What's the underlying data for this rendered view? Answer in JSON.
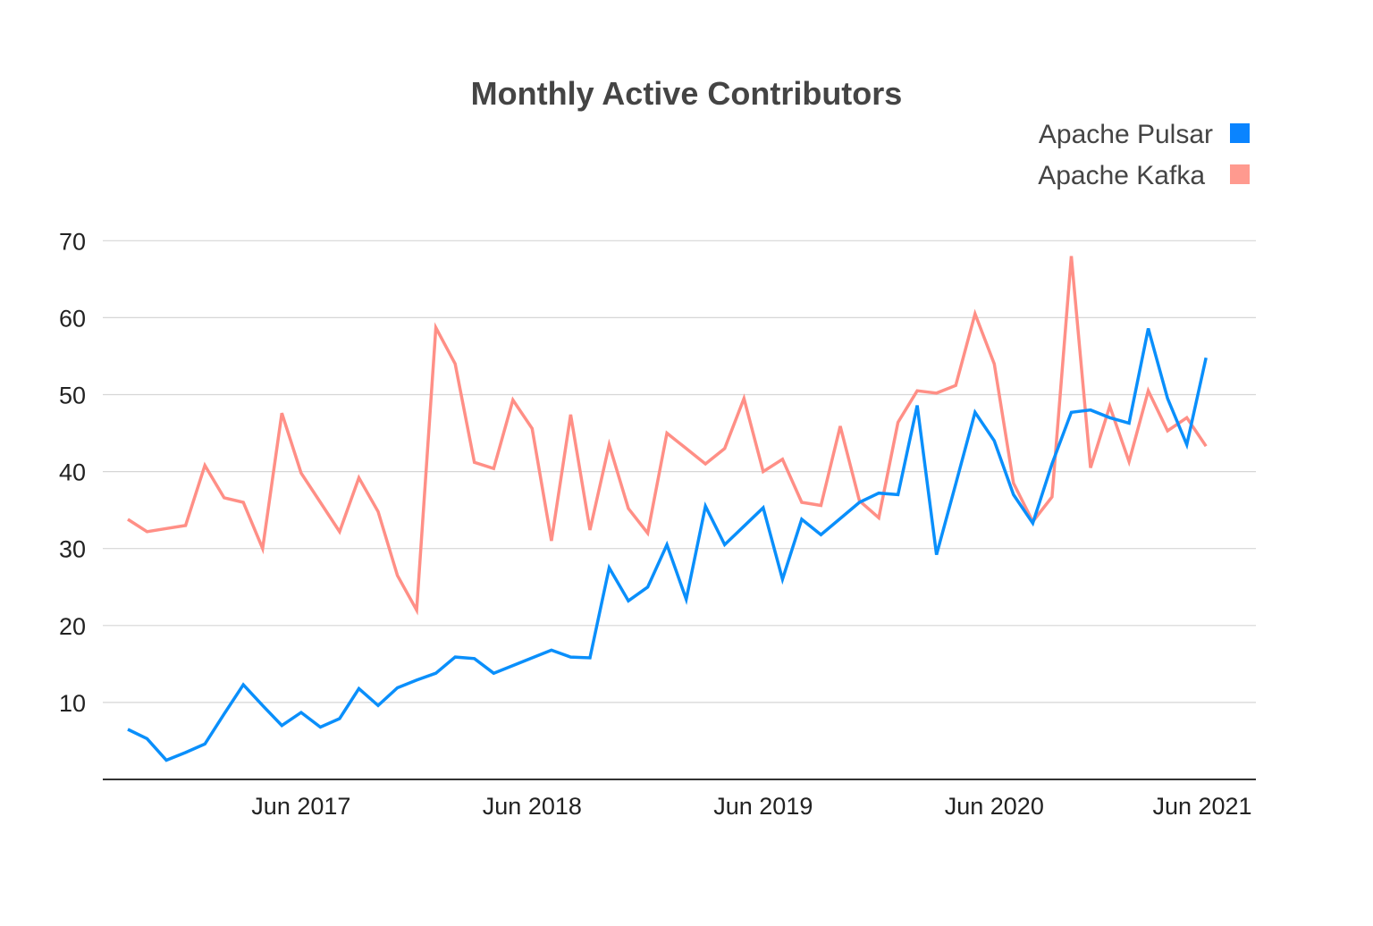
{
  "chart_data": {
    "type": "line",
    "title": "Monthly Active Contributors",
    "xlabel": "",
    "ylabel": "",
    "ylim": [
      0,
      70
    ],
    "y_ticks": [
      10,
      20,
      30,
      40,
      50,
      60,
      70
    ],
    "x_ticks": [
      {
        "label": "Jun 2017",
        "month": "2017-06"
      },
      {
        "label": "Jun 2018",
        "month": "2018-06"
      },
      {
        "label": "Jun 2019",
        "month": "2019-06"
      },
      {
        "label": "Jun 2020",
        "month": "2020-06"
      },
      {
        "label": "Jun 2021",
        "month": "2021-06"
      }
    ],
    "grid": true,
    "legend_position": "top-right",
    "x": [
      "2016-09",
      "2016-10",
      "2016-11",
      "2016-12",
      "2017-01",
      "2017-02",
      "2017-03",
      "2017-04",
      "2017-05",
      "2017-06",
      "2017-07",
      "2017-08",
      "2017-09",
      "2017-10",
      "2017-11",
      "2017-12",
      "2018-01",
      "2018-02",
      "2018-03",
      "2018-04",
      "2018-05",
      "2018-06",
      "2018-07",
      "2018-08",
      "2018-09",
      "2018-10",
      "2018-11",
      "2018-12",
      "2019-01",
      "2019-02",
      "2019-03",
      "2019-04",
      "2019-05",
      "2019-06",
      "2019-07",
      "2019-08",
      "2019-09",
      "2019-10",
      "2019-11",
      "2019-12",
      "2020-01",
      "2020-02",
      "2020-03",
      "2020-04",
      "2020-05",
      "2020-06",
      "2020-07",
      "2020-08",
      "2020-09",
      "2020-10",
      "2020-11",
      "2020-12",
      "2021-01",
      "2021-02",
      "2021-03",
      "2021-04",
      "2021-05"
    ],
    "series": [
      {
        "name": "Apache Pulsar",
        "color": "#0a8ffb",
        "legend_color": "#0a84ff",
        "values": [
          6.5,
          5.3,
          2.5,
          3.5,
          4.6,
          8.5,
          12.3,
          9.6,
          7,
          8.7,
          6.8,
          7.9,
          11.8,
          9.6,
          11.9,
          12.9,
          13.8,
          15.9,
          15.7,
          13.8,
          14.8,
          15.8,
          16.8,
          15.9,
          15.8,
          27.5,
          23.2,
          25,
          30.5,
          23.4,
          35.5,
          30.5,
          32.9,
          35.3,
          26,
          33.8,
          31.8,
          33.9,
          36,
          37.2,
          37,
          48.6,
          29.2,
          38.4,
          47.7,
          44,
          37,
          33.3,
          41,
          47.7,
          48,
          47,
          46.3,
          58.6,
          49.5,
          43.5,
          54.8
        ]
      },
      {
        "name": "Apache Kafka",
        "color": "#ff8f86",
        "legend_color": "#ff9a8f",
        "values": [
          33.8,
          32.2,
          32.6,
          33,
          40.8,
          36.6,
          36,
          30,
          47.6,
          39.8,
          36,
          32.2,
          39.2,
          34.8,
          26.5,
          22,
          58.7,
          54,
          41.2,
          40.4,
          49.3,
          45.6,
          31,
          47.4,
          32.4,
          43.5,
          35.2,
          32,
          45,
          43,
          41,
          43,
          49.5,
          40,
          41.6,
          36,
          35.6,
          45.9,
          36.2,
          34,
          46.4,
          50.5,
          50.2,
          51.2,
          60.5,
          54,
          38.5,
          33.5,
          36.7,
          68,
          40.5,
          48.5,
          41.3,
          50.5,
          45.3,
          47,
          43.3
        ]
      }
    ]
  }
}
